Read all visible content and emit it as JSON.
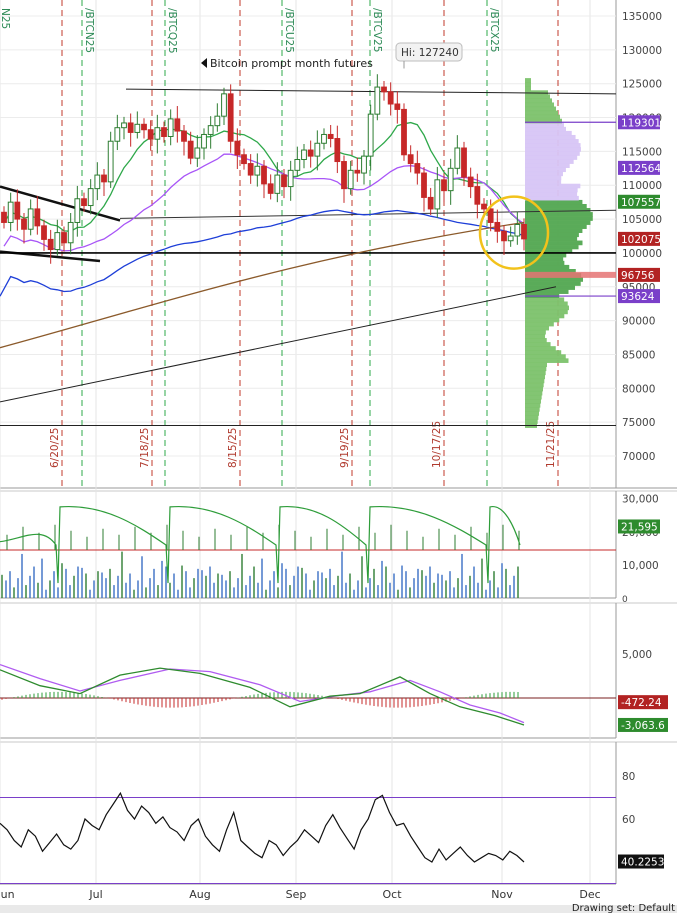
{
  "chart_data": [
    {
      "type": "candlestick",
      "title": "",
      "annotation": "Bitcoin prompt month futures",
      "high_label": "Hi: 127240",
      "y_axis": {
        "ylim": [
          68000,
          137000
        ],
        "ticks": [
          70000,
          75000,
          80000,
          85000,
          90000,
          95000,
          100000,
          105000,
          110000,
          115000,
          120000,
          125000,
          130000,
          135000
        ]
      },
      "price_labels": [
        {
          "value": "119301",
          "color": "#7a3fc9"
        },
        {
          "value": "112564",
          "color": "#7a3fc9"
        },
        {
          "value": "107557",
          "color": "#2e8b2e"
        },
        {
          "value": "102075",
          "color": "#b22222"
        },
        {
          "value": "96756",
          "color": "#b22222"
        },
        {
          "value": "93624",
          "color": "#7a3fc9"
        }
      ],
      "expiry_labels": [
        "/BTCN25",
        "/BTCQ25",
        "/BTCU25",
        "/BTCV25",
        "/BTCX25"
      ],
      "date_markers": [
        "6/20/25",
        "7/18/25",
        "8/15/25",
        "9/19/25",
        "10/17/25",
        "11/21/25"
      ],
      "x_labels": [
        "Jun",
        "Jul",
        "Aug",
        "Sep",
        "Oct",
        "Nov",
        "Dec"
      ],
      "close_series": [
        104500,
        107500,
        105000,
        103500,
        106500,
        104000,
        102000,
        100500,
        103000,
        101500,
        104500,
        108000,
        107000,
        109500,
        111500,
        110500,
        116500,
        118500,
        119200,
        117800,
        119000,
        118200,
        116800,
        118500,
        117200,
        119800,
        118000,
        116500,
        114000,
        115500,
        117500,
        118800,
        120200,
        123500,
        116500,
        114500,
        113200,
        111500,
        112800,
        110200,
        108800,
        111500,
        109800,
        112200,
        113800,
        115200,
        114300,
        116200,
        117500,
        116900,
        113500,
        109500,
        112200,
        111800,
        114300,
        120500,
        124500,
        123800,
        122000,
        121200,
        114500,
        113200,
        111800,
        108200,
        106500,
        110800,
        109200,
        112500,
        115500,
        111200,
        109800,
        107200,
        106500,
        104500,
        103200,
        101800,
        102500,
        104200,
        102075
      ],
      "indicators": [
        "20-day SMA (green)",
        "50-day SMA (purple)",
        "100-day SMA (blue)",
        "200-day SMA (brown)"
      ],
      "volume_profile": "horizontal volume-at-price histogram on right"
    },
    {
      "type": "bar+line",
      "panel": "volume / open interest",
      "ylim": [
        0,
        32000
      ],
      "ticks": [
        10000,
        20000,
        30000
      ],
      "tick_labels": [
        "10,000",
        "20,000",
        "30,000"
      ],
      "last_label": "21,595",
      "last_label_color": "#2e8b2e"
    },
    {
      "type": "macd",
      "panel": "MACD",
      "ticks": [
        5000
      ],
      "tick_labels": [
        "5,000"
      ],
      "labels": [
        {
          "value": "-472.24",
          "color": "#b22222"
        },
        {
          "value": "-3,063.6",
          "color": "#2e8b2e"
        }
      ]
    },
    {
      "type": "line",
      "panel": "RSI",
      "ylim": [
        28,
        86
      ],
      "ticks": [
        40,
        60,
        80
      ],
      "levels": [
        70,
        30
      ],
      "last_label": "40.2253",
      "values": [
        58,
        55,
        50,
        47,
        55,
        52,
        45,
        49,
        53,
        48,
        46,
        50,
        60,
        57,
        55,
        62,
        67,
        72,
        64,
        60,
        66,
        63,
        58,
        61,
        56,
        54,
        50,
        57,
        60,
        52,
        48,
        45,
        55,
        63,
        50,
        47,
        44,
        42,
        50,
        48,
        43,
        47,
        50,
        55,
        52,
        49,
        57,
        62,
        56,
        51,
        46,
        55,
        60,
        69,
        71,
        63,
        57,
        58,
        52,
        47,
        42,
        40,
        46,
        41,
        44,
        47,
        43,
        40,
        42,
        44,
        43,
        41,
        45,
        43,
        40
      ]
    }
  ],
  "status_bar": {
    "label": "Drawing set: Default"
  }
}
